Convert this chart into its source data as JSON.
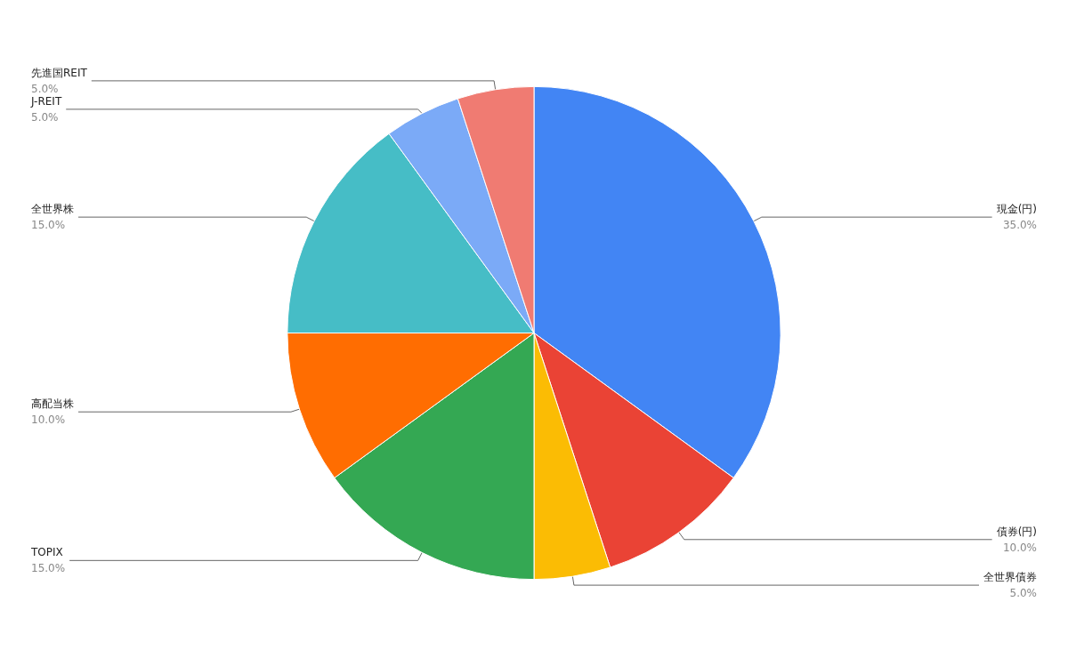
{
  "chart_data": {
    "type": "pie",
    "categories": [
      "現金(円)",
      "債券(円)",
      "全世界債券",
      "TOPIX",
      "高配当株",
      "全世界株",
      "J-REIT",
      "先進国REIT"
    ],
    "values": [
      35,
      10,
      5,
      15,
      10,
      15,
      5,
      5
    ],
    "value_labels": [
      "35.0%",
      "10.0%",
      "5.0%",
      "15.0%",
      "10.0%",
      "15.0%",
      "5.0%",
      "5.0%"
    ],
    "colors": [
      "#4285f4",
      "#ea4335",
      "#fbbc04",
      "#34a853",
      "#ff6d01",
      "#46bdc6",
      "#7baaf7",
      "#f07b72"
    ],
    "legend": false
  }
}
